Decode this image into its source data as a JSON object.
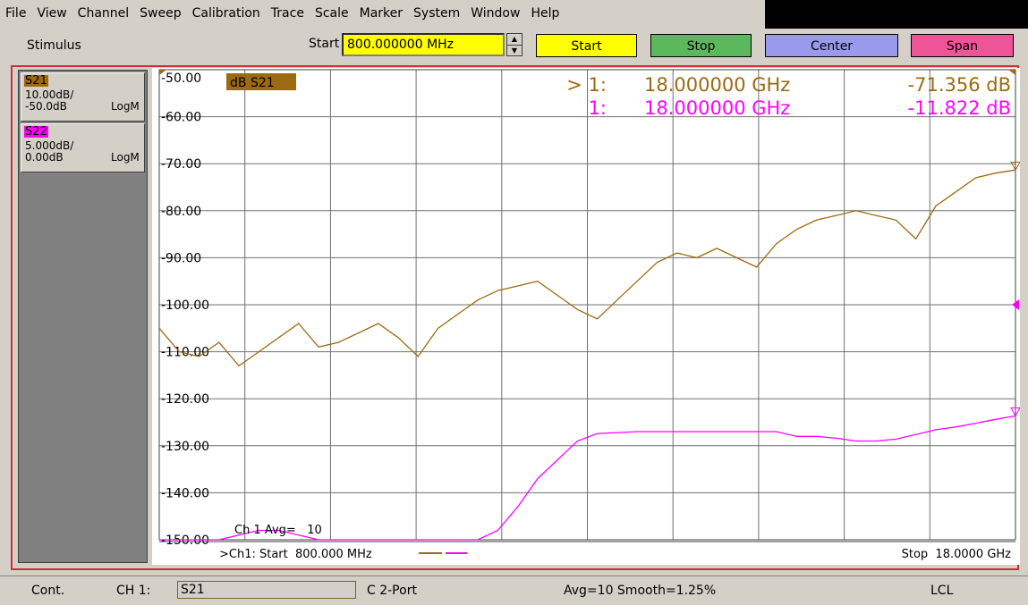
{
  "menu": [
    "File",
    "View",
    "Channel",
    "Sweep",
    "Calibration",
    "Trace",
    "Scale",
    "Marker",
    "System",
    "Window",
    "Help"
  ],
  "toolbar": {
    "label": "Stimulus",
    "field_label": "Start",
    "field_value": "800.000000 MHz",
    "buttons": [
      {
        "label": "Start",
        "color": "#ffff00"
      },
      {
        "label": "Stop",
        "color": "#5cb85c"
      },
      {
        "label": "Center",
        "color": "#9999ee"
      },
      {
        "label": "Span",
        "color": "#ee5599"
      }
    ]
  },
  "traces": [
    {
      "name": "S21",
      "scale": "10.00dB/",
      "reference": "-50.0dB",
      "format": "LogM",
      "color": "#9c6a10"
    },
    {
      "name": "S22",
      "scale": "5.000dB/",
      "reference": "0.00dB",
      "format": "LogM",
      "color": "#ff00ff"
    }
  ],
  "chart_data": {
    "type": "line",
    "trace_label": "dB S21",
    "x": [
      0.8,
      1.2,
      1.6,
      2.0,
      2.4,
      2.8,
      3.2,
      3.6,
      4.0,
      4.4,
      4.8,
      5.2,
      5.6,
      6.0,
      6.4,
      6.8,
      7.2,
      7.6,
      8.0,
      8.4,
      8.8,
      9.2,
      9.6,
      10.0,
      10.4,
      10.8,
      11.2,
      11.6,
      12.0,
      12.4,
      12.8,
      13.2,
      13.6,
      14.0,
      14.4,
      14.8,
      15.2,
      15.6,
      16.0,
      16.4,
      16.8,
      17.2,
      17.6,
      18.0
    ],
    "xlim": [
      0.8,
      18
    ],
    "ylim": [
      -150,
      -50
    ],
    "yticks": [
      {
        "value": -50,
        "label": "-50.00"
      },
      {
        "value": -60,
        "label": "-60.00"
      },
      {
        "value": -70,
        "label": "-70.00"
      },
      {
        "value": -80,
        "label": "-80.00"
      },
      {
        "value": -90,
        "label": "-90.00"
      },
      {
        "value": -100,
        "label": "-100.00"
      },
      {
        "value": -110,
        "label": "-110.00"
      },
      {
        "value": -120,
        "label": "-120.00"
      },
      {
        "value": -130,
        "label": "-130.00"
      },
      {
        "value": -140,
        "label": "-140.00"
      },
      {
        "value": -150,
        "label": "-150.00"
      }
    ],
    "y2lim": [
      -25,
      25
    ],
    "grid": true,
    "series": [
      {
        "name": "S21",
        "color": "#9c6a10",
        "values": [
          -105,
          -110,
          -111,
          -108,
          -113,
          -110,
          -107,
          -104,
          -109,
          -108,
          -106,
          -104,
          -107,
          -111,
          -105,
          -102,
          -99,
          -97,
          -96,
          -95,
          -98,
          -101,
          -103,
          -99,
          -95,
          -91,
          -89,
          -90,
          -88,
          -90,
          -92,
          -87,
          -84,
          -82,
          -81,
          -80,
          -81,
          -82,
          -86,
          -79,
          -76,
          -73,
          -72,
          -71.356
        ]
      },
      {
        "name": "S22",
        "color": "#ff00ff",
        "axis": "y2",
        "values": [
          -25,
          -25,
          -25,
          -25,
          -24.5,
          -24,
          -24,
          -24.5,
          -25,
          -25,
          -25,
          -25,
          -25,
          -25,
          -25,
          -25,
          -25,
          -24,
          -21.5,
          -18.5,
          -16.5,
          -14.5,
          -13.7,
          -13.6,
          -13.5,
          -13.5,
          -13.5,
          -13.5,
          -13.5,
          -13.5,
          -13.5,
          -13.5,
          -14,
          -14,
          -14.2,
          -14.5,
          -14.5,
          -14.3,
          -13.8,
          -13.3,
          -13,
          -12.6,
          -12.2,
          -11.822
        ]
      }
    ],
    "markers": [
      {
        "label": "> 1:",
        "stimulus": "18.000000 GHz",
        "response": "-71.356 dB",
        "color": "#9c6a10"
      },
      {
        "label": "1:",
        "stimulus": "18.000000 GHz",
        "response": "-11.822 dB",
        "color": "#ff00ff"
      }
    ],
    "annotation": "Ch 1 Avg=   10",
    "start_label": ">Ch1: Start  800.000 MHz",
    "stop_label": "Stop  18.0000 GHz"
  },
  "status": {
    "mode": "Cont.",
    "channel": "CH 1:",
    "trace": "S21",
    "cal": "C  2-Port",
    "averaging": "Avg=10 Smooth=1.25%",
    "remote": "LCL"
  }
}
